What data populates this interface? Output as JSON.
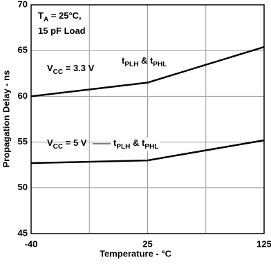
{
  "chart_data": {
    "type": "line",
    "xlabel": "Temperature - °C",
    "ylabel": "Propagation Delay - ns",
    "categories": [
      "-40",
      "25",
      "125"
    ],
    "series": [
      {
        "color": "#000000",
        "values": [
          60,
          61.5,
          65.4
        ]
      },
      {
        "color": "#000000",
        "values": [
          52.7,
          53,
          55.2
        ]
      }
    ],
    "ylim": [
      45,
      70
    ],
    "yticks": [
      45,
      50,
      55,
      60,
      65,
      70
    ],
    "grid": true,
    "annotations": [
      {
        "segments": [
          {
            "text": "T"
          },
          {
            "text": "A",
            "sub": true
          },
          {
            "text": " = 25°C,"
          }
        ]
      },
      {
        "segments": [
          {
            "text": "15 pF Load"
          }
        ]
      },
      {
        "segments": [
          {
            "text": "V"
          },
          {
            "text": "CC",
            "sub": true
          },
          {
            "text": " = 3.3 V"
          }
        ]
      },
      {
        "segments": [
          {
            "text": "t"
          },
          {
            "text": "PLH",
            "sub": true
          },
          {
            "text": " & t"
          },
          {
            "text": "PHL",
            "sub": true
          }
        ]
      },
      {
        "segments": [
          {
            "text": "V"
          },
          {
            "text": "CC",
            "sub": true
          },
          {
            "text": " = 5 V"
          }
        ]
      },
      {
        "segments": [
          {
            "text": "t"
          },
          {
            "text": "PLH",
            "sub": true
          },
          {
            "text": " & t"
          },
          {
            "text": "PHL",
            "sub": true
          }
        ]
      }
    ]
  }
}
